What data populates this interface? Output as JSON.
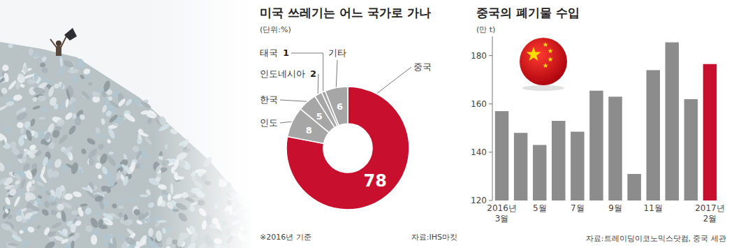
{
  "chart_data": [
    {
      "type": "donut",
      "title": "미국 쓰레기는 어느 국가로 가나",
      "subtitle": "(단위:%)",
      "categories": [
        "중국",
        "인도",
        "한국",
        "인도네시아",
        "태국",
        "기타"
      ],
      "values": [
        78,
        8,
        5,
        2,
        1,
        6
      ],
      "colors": [
        "#c8102e",
        "#a6a6a6",
        "#a6a6a6",
        "#a6a6a6",
        "#a6a6a6",
        "#a6a6a6"
      ],
      "data_labels": true,
      "annotations": [
        "※2016년 기준"
      ],
      "source": "자료:IHS마킷"
    },
    {
      "type": "bar",
      "title": "중국의 폐기물 수입",
      "y_label": "(만 t)",
      "categories": [
        "2016년 3월",
        null,
        "5월",
        null,
        "7월",
        null,
        "9월",
        null,
        "11월",
        null,
        null,
        "2017년 2월"
      ],
      "values": [
        157,
        148,
        143,
        153,
        148.5,
        165.5,
        163,
        131,
        174,
        185.5,
        162,
        176.5
      ],
      "colors": [
        "#8c8c8c",
        "#8c8c8c",
        "#8c8c8c",
        "#8c8c8c",
        "#8c8c8c",
        "#8c8c8c",
        "#8c8c8c",
        "#8c8c8c",
        "#8c8c8c",
        "#8c8c8c",
        "#8c8c8c",
        "#c8102e"
      ],
      "ylim": [
        120,
        188
      ],
      "yticks": [
        120,
        140,
        160,
        180
      ],
      "grid": false,
      "source": "자료:트레이딩이코노믹스닷컴, 중국 세관"
    }
  ]
}
